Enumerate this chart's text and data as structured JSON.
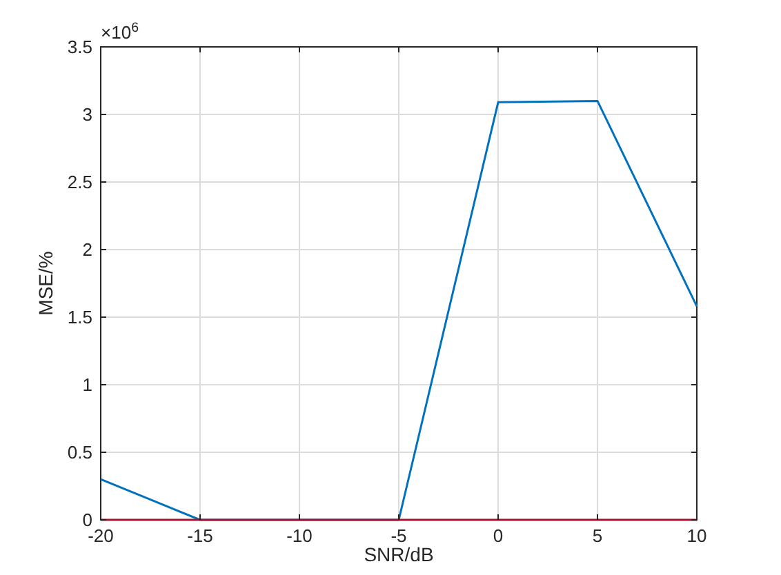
{
  "chart_data": {
    "type": "line",
    "xlabel": "SNR/dB",
    "ylabel": "MSE/%",
    "annotations": [
      "×10$^{6}$"
    ],
    "x": [
      -20,
      -15,
      -10,
      -5,
      0,
      5,
      10
    ],
    "series": [
      {
        "color": "#0072bd",
        "values": [
          0.3,
          0,
          0,
          0,
          3.09,
          3.1,
          1.58
        ]
      },
      {
        "color": "#a2142f",
        "values": [
          0,
          0,
          0,
          0,
          0,
          0,
          0
        ]
      }
    ],
    "xlim": [
      -20,
      10
    ],
    "xticks": [
      -20,
      -15,
      -10,
      -5,
      0,
      5,
      10
    ],
    "ylim": [
      0,
      3.5
    ],
    "yticks": [
      0,
      0.5,
      1,
      1.5,
      2,
      2.5,
      3,
      3.5
    ],
    "grid": true,
    "marker": "none",
    "line_style": "solid"
  }
}
